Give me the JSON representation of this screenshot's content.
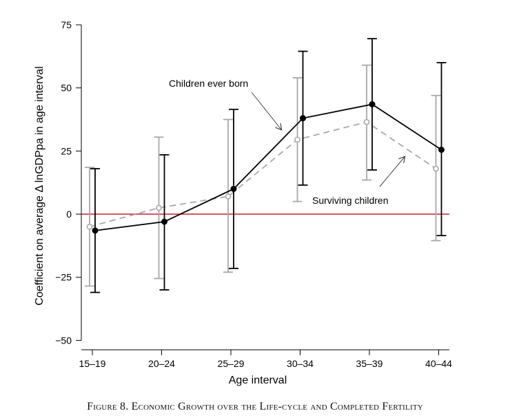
{
  "chart_data": {
    "type": "line",
    "ylabel": "Coefficient on average Δ lnGDPpa in age interval",
    "xlabel": "Age interval",
    "categories": [
      "15–19",
      "20–24",
      "25–29",
      "30–34",
      "35–39",
      "40–44"
    ],
    "yticks": [
      75,
      50,
      25,
      0,
      -25,
      -50
    ],
    "ytick_labels": [
      "75",
      "50",
      "25",
      "0",
      "−25",
      "−50"
    ],
    "ylim": [
      -53,
      80
    ],
    "reference_line": {
      "y": 0,
      "color": "#c0222e"
    },
    "series": [
      {
        "name": "Children ever born",
        "style": "solid",
        "color": "#000000",
        "values": [
          -6.5,
          -3,
          10,
          38,
          43.5,
          25.5
        ],
        "ci_low": [
          -31,
          -30,
          -21.5,
          11.5,
          17.5,
          -8.5
        ],
        "ci_high": [
          18,
          23.5,
          41.5,
          64.5,
          69.5,
          60
        ]
      },
      {
        "name": "Surviving children",
        "style": "dashed",
        "color": "#a8a8a8",
        "values": [
          -5,
          2.5,
          7,
          29.5,
          36.5,
          18
        ],
        "ci_low": [
          -28.5,
          -25.5,
          -23,
          5,
          13.5,
          -10.5
        ],
        "ci_high": [
          18.5,
          30.5,
          37.5,
          54,
          59,
          47
        ]
      }
    ],
    "annotations": [
      {
        "text": "Children ever born",
        "series": 0
      },
      {
        "text": "Surviving children",
        "series": 1
      }
    ]
  },
  "caption": "Figure 8. Economic Growth over the Life-cycle and Completed Fertility"
}
